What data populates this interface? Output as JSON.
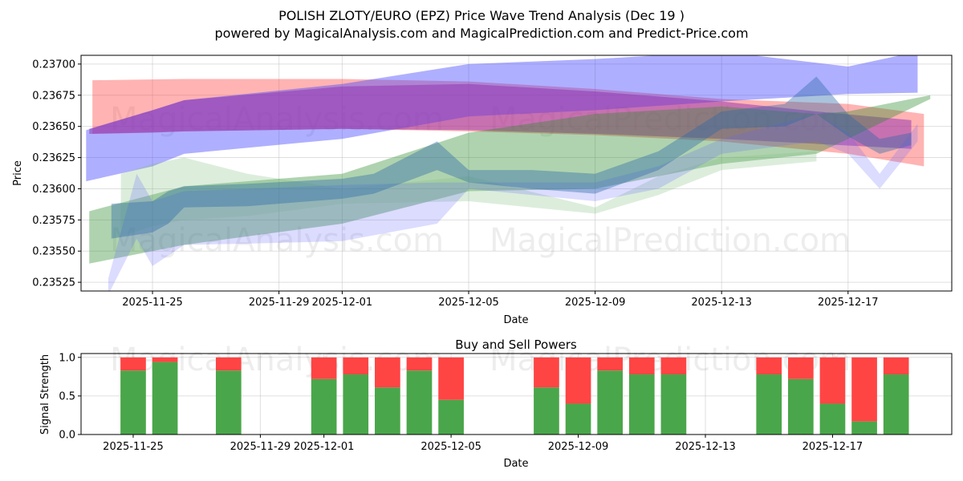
{
  "chart_data": [
    {
      "type": "area",
      "title": "POLISH ZLOTY/EURO (EPZ) Price Wave Trend Analysis (Dec 19 )",
      "subtitle": "powered by MagicalAnalysis.com and MagicalPrediction.com and Predict-Price.com",
      "xlabel": "Date",
      "ylabel": "Price",
      "x_unit": "days since 2025-11-25",
      "xlim": [
        -2.26,
        25.28
      ],
      "ylim": [
        0.23518,
        0.23707
      ],
      "grid": true,
      "xticks": [
        {
          "d": 0,
          "label": "2025-11-25"
        },
        {
          "d": 4,
          "label": "2025-11-29"
        },
        {
          "d": 6,
          "label": "2025-12-01"
        },
        {
          "d": 10,
          "label": "2025-12-05"
        },
        {
          "d": 14,
          "label": "2025-12-09"
        },
        {
          "d": 18,
          "label": "2025-12-13"
        },
        {
          "d": 22,
          "label": "2025-12-17"
        }
      ],
      "yticks": [
        {
          "v": 0.23525,
          "label": "0.23525"
        },
        {
          "v": 0.2355,
          "label": "0.23550"
        },
        {
          "v": 0.23575,
          "label": "0.23575"
        },
        {
          "v": 0.236,
          "label": "0.23600"
        },
        {
          "v": 0.23625,
          "label": "0.23625"
        },
        {
          "v": 0.2365,
          "label": "0.23650"
        },
        {
          "v": 0.23675,
          "label": "0.23675"
        },
        {
          "v": 0.237,
          "label": "0.23700"
        }
      ],
      "watermarks": [
        "MagicalAnalysis.com",
        "MagicalPrediction.com"
      ],
      "bands": [
        {
          "name": "red-band",
          "color": "#ff4040",
          "opacity": 0.4,
          "x": [
            -1.9,
            1,
            6,
            10,
            14,
            18,
            22,
            24.4
          ],
          "upper": [
            0.23687,
            0.23688,
            0.23688,
            0.23686,
            0.2368,
            0.23672,
            0.23668,
            0.2366
          ],
          "lower": [
            0.23644,
            0.23646,
            0.23648,
            0.23646,
            0.23643,
            0.23638,
            0.23628,
            0.23618
          ]
        },
        {
          "name": "blue-band",
          "color": "#4040ff",
          "opacity": 0.42,
          "x": [
            -2.1,
            0,
            1,
            6,
            10,
            14,
            18,
            22,
            24.2
          ],
          "upper": [
            0.23647,
            0.23663,
            0.23671,
            0.23684,
            0.237,
            0.23704,
            0.2371,
            0.23698,
            0.2371
          ],
          "lower": [
            0.23606,
            0.23618,
            0.23628,
            0.2364,
            0.23658,
            0.23663,
            0.2367,
            0.23676,
            0.23677
          ]
        },
        {
          "name": "purple-band",
          "color": "#9030b0",
          "opacity": 0.5,
          "x": [
            -2,
            0,
            1,
            6,
            10,
            14,
            18,
            21,
            24
          ],
          "upper": [
            0.23648,
            0.23663,
            0.23671,
            0.23682,
            0.23684,
            0.23678,
            0.2367,
            0.23662,
            0.23655
          ],
          "lower": [
            0.23644,
            0.23645,
            0.23646,
            0.23648,
            0.23647,
            0.23644,
            0.2364,
            0.23636,
            0.23632
          ]
        },
        {
          "name": "green-band",
          "color": "#2e8b2e",
          "opacity": 0.38,
          "x": [
            -2,
            1,
            6,
            10,
            14,
            18,
            21,
            22,
            24.6
          ],
          "upper": [
            0.23582,
            0.23602,
            0.23612,
            0.23645,
            0.2366,
            0.23666,
            0.2366,
            0.23662,
            0.23675
          ],
          "lower": [
            0.2354,
            0.23555,
            0.23572,
            0.23598,
            0.236,
            0.2362,
            0.23628,
            0.2364,
            0.23672
          ]
        },
        {
          "name": "light-green-band",
          "color": "#80c080",
          "opacity": 0.28,
          "x": [
            -1,
            0,
            1,
            3,
            6,
            10,
            14,
            16,
            18,
            21
          ],
          "upper": [
            0.23612,
            0.2362,
            0.23625,
            0.23612,
            0.236,
            0.2361,
            0.23585,
            0.2361,
            0.23625,
            0.2363
          ],
          "lower": [
            0.23562,
            0.2357,
            0.23575,
            0.23578,
            0.23588,
            0.2359,
            0.2358,
            0.23595,
            0.23615,
            0.23622
          ]
        },
        {
          "name": "light-blue-band",
          "color": "#6060ff",
          "opacity": 0.22,
          "x": [
            -1.4,
            -0.5,
            0,
            1,
            3,
            6,
            9,
            10,
            14,
            16,
            18,
            21,
            22,
            23,
            24.2
          ],
          "upper": [
            0.23528,
            0.23612,
            0.2359,
            0.23598,
            0.236,
            0.23603,
            0.23605,
            0.23605,
            0.23605,
            0.23618,
            0.2364,
            0.2366,
            0.23645,
            0.23612,
            0.23652
          ],
          "lower": [
            0.23515,
            0.2356,
            0.23538,
            0.23555,
            0.23556,
            0.23558,
            0.23572,
            0.236,
            0.2359,
            0.236,
            0.23628,
            0.23638,
            0.23628,
            0.236,
            0.23638
          ]
        },
        {
          "name": "steel-blue-band",
          "color": "#2a6aa8",
          "opacity": 0.4,
          "x": [
            -1.3,
            0,
            0.5,
            1,
            3,
            6,
            7,
            9,
            10,
            12,
            14,
            16,
            18,
            20,
            21,
            22,
            23,
            24
          ],
          "upper": [
            0.23588,
            0.2359,
            0.23598,
            0.23602,
            0.23604,
            0.23608,
            0.23612,
            0.23638,
            0.23615,
            0.23615,
            0.23612,
            0.2363,
            0.23662,
            0.23668,
            0.2369,
            0.2366,
            0.2364,
            0.23645
          ],
          "lower": [
            0.2356,
            0.23565,
            0.23572,
            0.23585,
            0.23586,
            0.23592,
            0.23596,
            0.23615,
            0.23605,
            0.236,
            0.23596,
            0.23615,
            0.23648,
            0.2365,
            0.2366,
            0.23642,
            0.23628,
            0.23635
          ]
        }
      ]
    },
    {
      "type": "bar",
      "title": "Buy and Sell Powers",
      "xlabel": "Date",
      "ylabel": "Signal Strength",
      "x_unit": "days since 2025-11-25",
      "xlim": [
        -1.64,
        25.75
      ],
      "ylim": [
        0,
        1.05
      ],
      "yticks": [
        {
          "v": 0,
          "label": "0.0"
        },
        {
          "v": 0.5,
          "label": "0.5"
        },
        {
          "v": 1,
          "label": "1.0"
        }
      ],
      "xticks": [
        {
          "d": 0,
          "label": "2025-11-25"
        },
        {
          "d": 4,
          "label": "2025-11-29"
        },
        {
          "d": 6,
          "label": "2025-12-01"
        },
        {
          "d": 10,
          "label": "2025-12-05"
        },
        {
          "d": 14,
          "label": "2025-12-09"
        },
        {
          "d": 18,
          "label": "2025-12-13"
        },
        {
          "d": 22,
          "label": "2025-12-17"
        }
      ],
      "colors": {
        "buy": "#4aa64a",
        "sell": "#ff4444"
      },
      "x": [
        0,
        1,
        3,
        6,
        7,
        8,
        9,
        10,
        13,
        14,
        15,
        16,
        17,
        20,
        21,
        22,
        23,
        24
      ],
      "series": [
        {
          "name": "Buy",
          "values": [
            0.83,
            0.94,
            0.83,
            0.72,
            0.78,
            0.61,
            0.83,
            0.45,
            0.61,
            0.4,
            0.83,
            0.78,
            0.78,
            0.78,
            0.72,
            0.4,
            0.17,
            0.78
          ]
        },
        {
          "name": "Sell",
          "values": [
            0.17,
            0.06,
            0.17,
            0.28,
            0.22,
            0.39,
            0.17,
            0.55,
            0.39,
            0.6,
            0.17,
            0.22,
            0.22,
            0.22,
            0.28,
            0.6,
            0.83,
            0.22
          ]
        }
      ]
    }
  ]
}
